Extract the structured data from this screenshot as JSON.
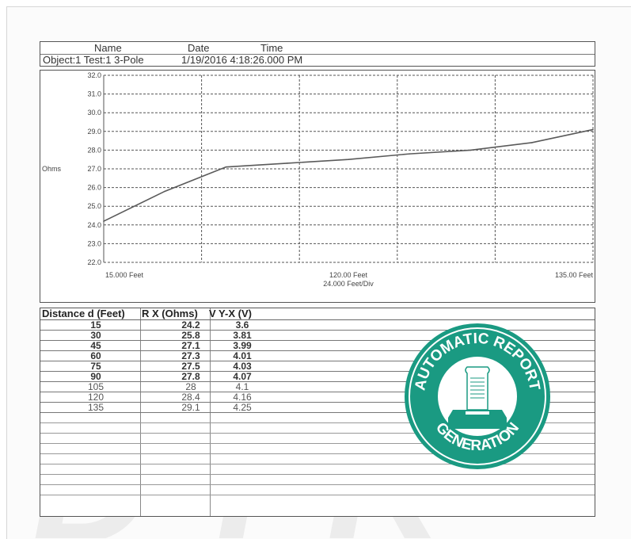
{
  "watermark": "DYK",
  "header": {
    "name_label": "Name",
    "date_label": "Date",
    "time_label": "Time",
    "object": "Object:1 Test:1  3-Pole",
    "datetime": "1/19/2016 4:18:26.000 PM"
  },
  "chart_data": {
    "type": "line",
    "ylabel": "Ohms",
    "yticks": [
      "32.0",
      "31.0",
      "30.0",
      "29.0",
      "28.0",
      "27.0",
      "26.0",
      "25.0",
      "24.0",
      "23.0",
      "22.0"
    ],
    "ylim": [
      22,
      32
    ],
    "xlim": [
      15,
      135
    ],
    "x_left_label": "15.000 Feet",
    "x_mid_label": "120.00 Feet",
    "x_div_label": "24.000 Feet/Div",
    "x_right_label": "135.00 Feet",
    "grid": true,
    "series": [
      {
        "x": [
          15,
          30,
          45,
          60,
          75,
          90,
          105,
          120,
          135
        ],
        "y": [
          24.2,
          25.8,
          27.1,
          27.3,
          27.5,
          27.8,
          28.0,
          28.4,
          29.1
        ]
      }
    ],
    "line_color": "#5a5a5a"
  },
  "table": {
    "headers": [
      "Distance d (Feet)",
      "R X (Ohms)",
      "V Y-X (V)"
    ],
    "rows": [
      [
        "15",
        "24.2",
        "3.6"
      ],
      [
        "30",
        "25.8",
        "3.81"
      ],
      [
        "45",
        "27.1",
        "3.99"
      ],
      [
        "60",
        "27.3",
        "4.01"
      ],
      [
        "75",
        "27.5",
        "4.03"
      ],
      [
        "90",
        "27.8",
        "4.07"
      ],
      [
        "105",
        "28",
        "4.1"
      ],
      [
        "120",
        "28.4",
        "4.16"
      ],
      [
        "135",
        "29.1",
        "4.25"
      ]
    ]
  },
  "stamp": {
    "text_top": "AUTOMATIC REPORT",
    "text_bottom": "GENERATION",
    "color": "#1a9a82"
  }
}
